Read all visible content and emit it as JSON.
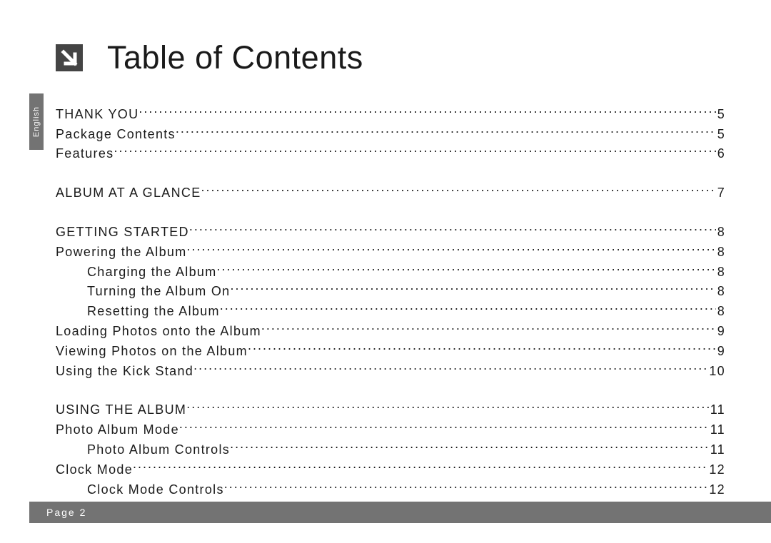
{
  "sideTab": {
    "label": "English"
  },
  "title": "Table of Contents",
  "arrow": {
    "bg": "#444444",
    "fg": "#ffffff",
    "size": 38
  },
  "toc": {
    "entry_fontsize": 18,
    "letter_spacing": 1.3,
    "text_color": "#1a1a1a",
    "entries": [
      {
        "level": 0,
        "chapter": true,
        "label": "THANK YOU",
        "page": "5"
      },
      {
        "level": 0,
        "chapter": false,
        "label": "Package Contents",
        "page": "5"
      },
      {
        "level": 0,
        "chapter": false,
        "label": "Features",
        "page": "6"
      },
      {
        "gap": true
      },
      {
        "level": 0,
        "chapter": true,
        "label": "ALBUM AT A GLANCE",
        "page": "7"
      },
      {
        "gap": true
      },
      {
        "level": 0,
        "chapter": true,
        "label": "GETTING STARTED",
        "page": "8"
      },
      {
        "level": 0,
        "chapter": false,
        "label": "Powering the Album",
        "page": "8"
      },
      {
        "level": 1,
        "chapter": false,
        "label": "Charging the Album",
        "page": "8"
      },
      {
        "level": 1,
        "chapter": false,
        "label": "Turning the Album On",
        "page": "8"
      },
      {
        "level": 1,
        "chapter": false,
        "label": "Resetting the Album",
        "page": "8"
      },
      {
        "level": 0,
        "chapter": false,
        "label": "Loading Photos onto the Album",
        "page": "9"
      },
      {
        "level": 0,
        "chapter": false,
        "label": "Viewing Photos on the Album",
        "page": "9"
      },
      {
        "level": 0,
        "chapter": false,
        "label": "Using the Kick Stand",
        "page": "10"
      },
      {
        "gap": true
      },
      {
        "level": 0,
        "chapter": true,
        "label": "USING THE ALBUM",
        "page": "11"
      },
      {
        "level": 0,
        "chapter": false,
        "label": "Photo Album Mode",
        "page": "11"
      },
      {
        "level": 1,
        "chapter": false,
        "label": "Photo Album Controls",
        "page": "11"
      },
      {
        "level": 0,
        "chapter": false,
        "label": "Clock Mode",
        "page": "12"
      },
      {
        "level": 1,
        "chapter": false,
        "label": "Clock Mode Controls",
        "page": "12"
      }
    ]
  },
  "footer": {
    "text": "Page 2",
    "bg": "#737373",
    "fg": "#ffffff"
  }
}
